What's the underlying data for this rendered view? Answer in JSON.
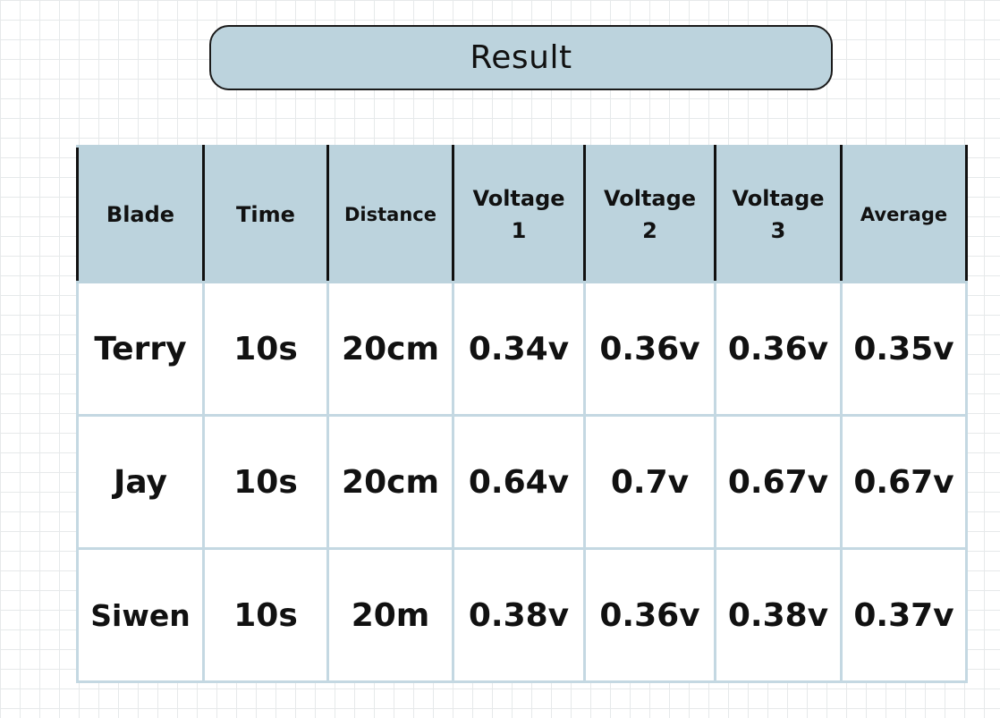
{
  "title": "Result",
  "table": {
    "headers": {
      "blade": "Blade",
      "time": "Time",
      "distance": "Distance",
      "voltage1_line1": "Voltage",
      "voltage1_line2": "1",
      "voltage2_line1": "Voltage",
      "voltage2_line2": "2",
      "voltage3_line1": "Voltage",
      "voltage3_line2": "3",
      "average": "Average"
    },
    "rows": [
      {
        "blade": "Terry",
        "time": "10s",
        "distance": "20cm",
        "voltage1": "0.34v",
        "voltage2": "0.36v",
        "voltage3": "0.36v",
        "average": "0.35v"
      },
      {
        "blade": "Jay",
        "time": "10s",
        "distance": "20cm",
        "voltage1": "0.64v",
        "voltage2": "0.7v",
        "voltage3": "0.67v",
        "average": "0.67v"
      },
      {
        "blade": "Siwen",
        "time": "10s",
        "distance": "20m",
        "voltage1": "0.38v",
        "voltage2": "0.36v",
        "voltage3": "0.38v",
        "average": "0.37v"
      }
    ]
  },
  "colors": {
    "header_fill": "#bcd3dd",
    "cell_border": "#c4d8e2",
    "header_border": "#111111",
    "grid_line": "#e6e9ea"
  }
}
